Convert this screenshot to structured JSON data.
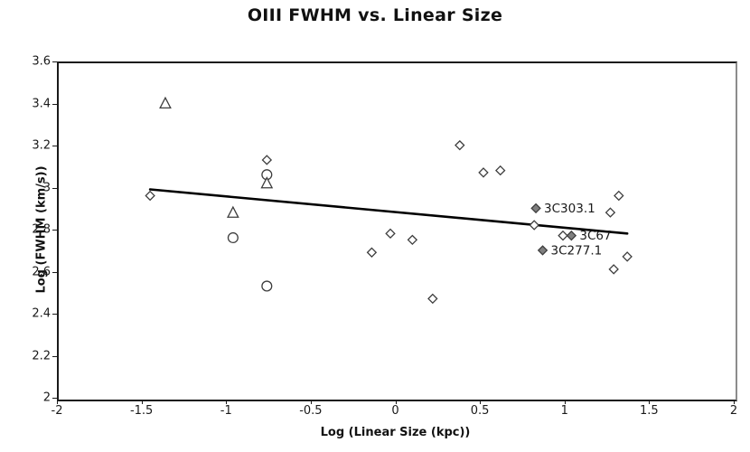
{
  "chart": {
    "title": "OIII FWHM vs. Linear Size",
    "xlabel": "Log (Linear Size (kpc))",
    "ylabel": "Log (FWHM (km/s))"
  },
  "colors": {
    "marker_stroke": "#3d3d3d",
    "marker_open_fill": "#ffffff",
    "marker_filled_fill": "#7f7f7f",
    "trend_line": "#000000",
    "annotation_text": "#1a1a1a",
    "axis": "#1a1a1a"
  },
  "chart_data": {
    "type": "scatter",
    "title": "OIII FWHM vs. Linear Size",
    "xlabel": "Log (Linear Size (kpc))",
    "ylabel": "Log (FWHM (km/s))",
    "xlim": [
      -2,
      2
    ],
    "ylim": [
      2,
      3.6
    ],
    "x_ticks": [
      -2,
      -1.5,
      -1,
      -0.5,
      0,
      0.5,
      1,
      1.5,
      2
    ],
    "y_ticks": [
      2,
      2.2,
      2.4,
      2.6,
      2.8,
      3,
      3.2,
      3.4,
      3.6
    ],
    "grid": false,
    "legend_position": "none",
    "series": [
      {
        "name": "open-diamond",
        "marker": "diamond",
        "fill": "open",
        "points": [
          {
            "x": -1.46,
            "y": 2.97
          },
          {
            "x": -0.77,
            "y": 3.14
          },
          {
            "x": -0.15,
            "y": 2.7
          },
          {
            "x": -0.04,
            "y": 2.79
          },
          {
            "x": 0.09,
            "y": 2.76
          },
          {
            "x": 0.21,
            "y": 2.48
          },
          {
            "x": 0.37,
            "y": 3.21
          },
          {
            "x": 0.51,
            "y": 3.08
          },
          {
            "x": 0.61,
            "y": 3.09
          },
          {
            "x": 0.81,
            "y": 2.83
          },
          {
            "x": 0.98,
            "y": 2.78
          },
          {
            "x": 1.26,
            "y": 2.89
          },
          {
            "x": 1.31,
            "y": 2.97
          },
          {
            "x": 1.28,
            "y": 2.62
          },
          {
            "x": 1.36,
            "y": 2.68
          }
        ]
      },
      {
        "name": "filled-diamond-labeled",
        "marker": "diamond",
        "fill": "filled",
        "points": [
          {
            "x": 0.82,
            "y": 2.91,
            "label": "3C303.1"
          },
          {
            "x": 1.03,
            "y": 2.78,
            "label": "3C67"
          },
          {
            "x": 0.86,
            "y": 2.71,
            "label": "3C277.1"
          }
        ]
      },
      {
        "name": "open-circle",
        "marker": "circle",
        "fill": "open",
        "points": [
          {
            "x": -0.97,
            "y": 2.77
          },
          {
            "x": -0.77,
            "y": 3.07
          },
          {
            "x": -0.77,
            "y": 2.54
          }
        ]
      },
      {
        "name": "open-triangle",
        "marker": "triangle",
        "fill": "open",
        "points": [
          {
            "x": -1.37,
            "y": 3.41
          },
          {
            "x": -0.97,
            "y": 2.89
          },
          {
            "x": -0.77,
            "y": 3.03
          }
        ]
      }
    ],
    "trend_line": {
      "x1": -1.46,
      "y1": 3.0,
      "x2": 1.36,
      "y2": 2.79
    }
  }
}
